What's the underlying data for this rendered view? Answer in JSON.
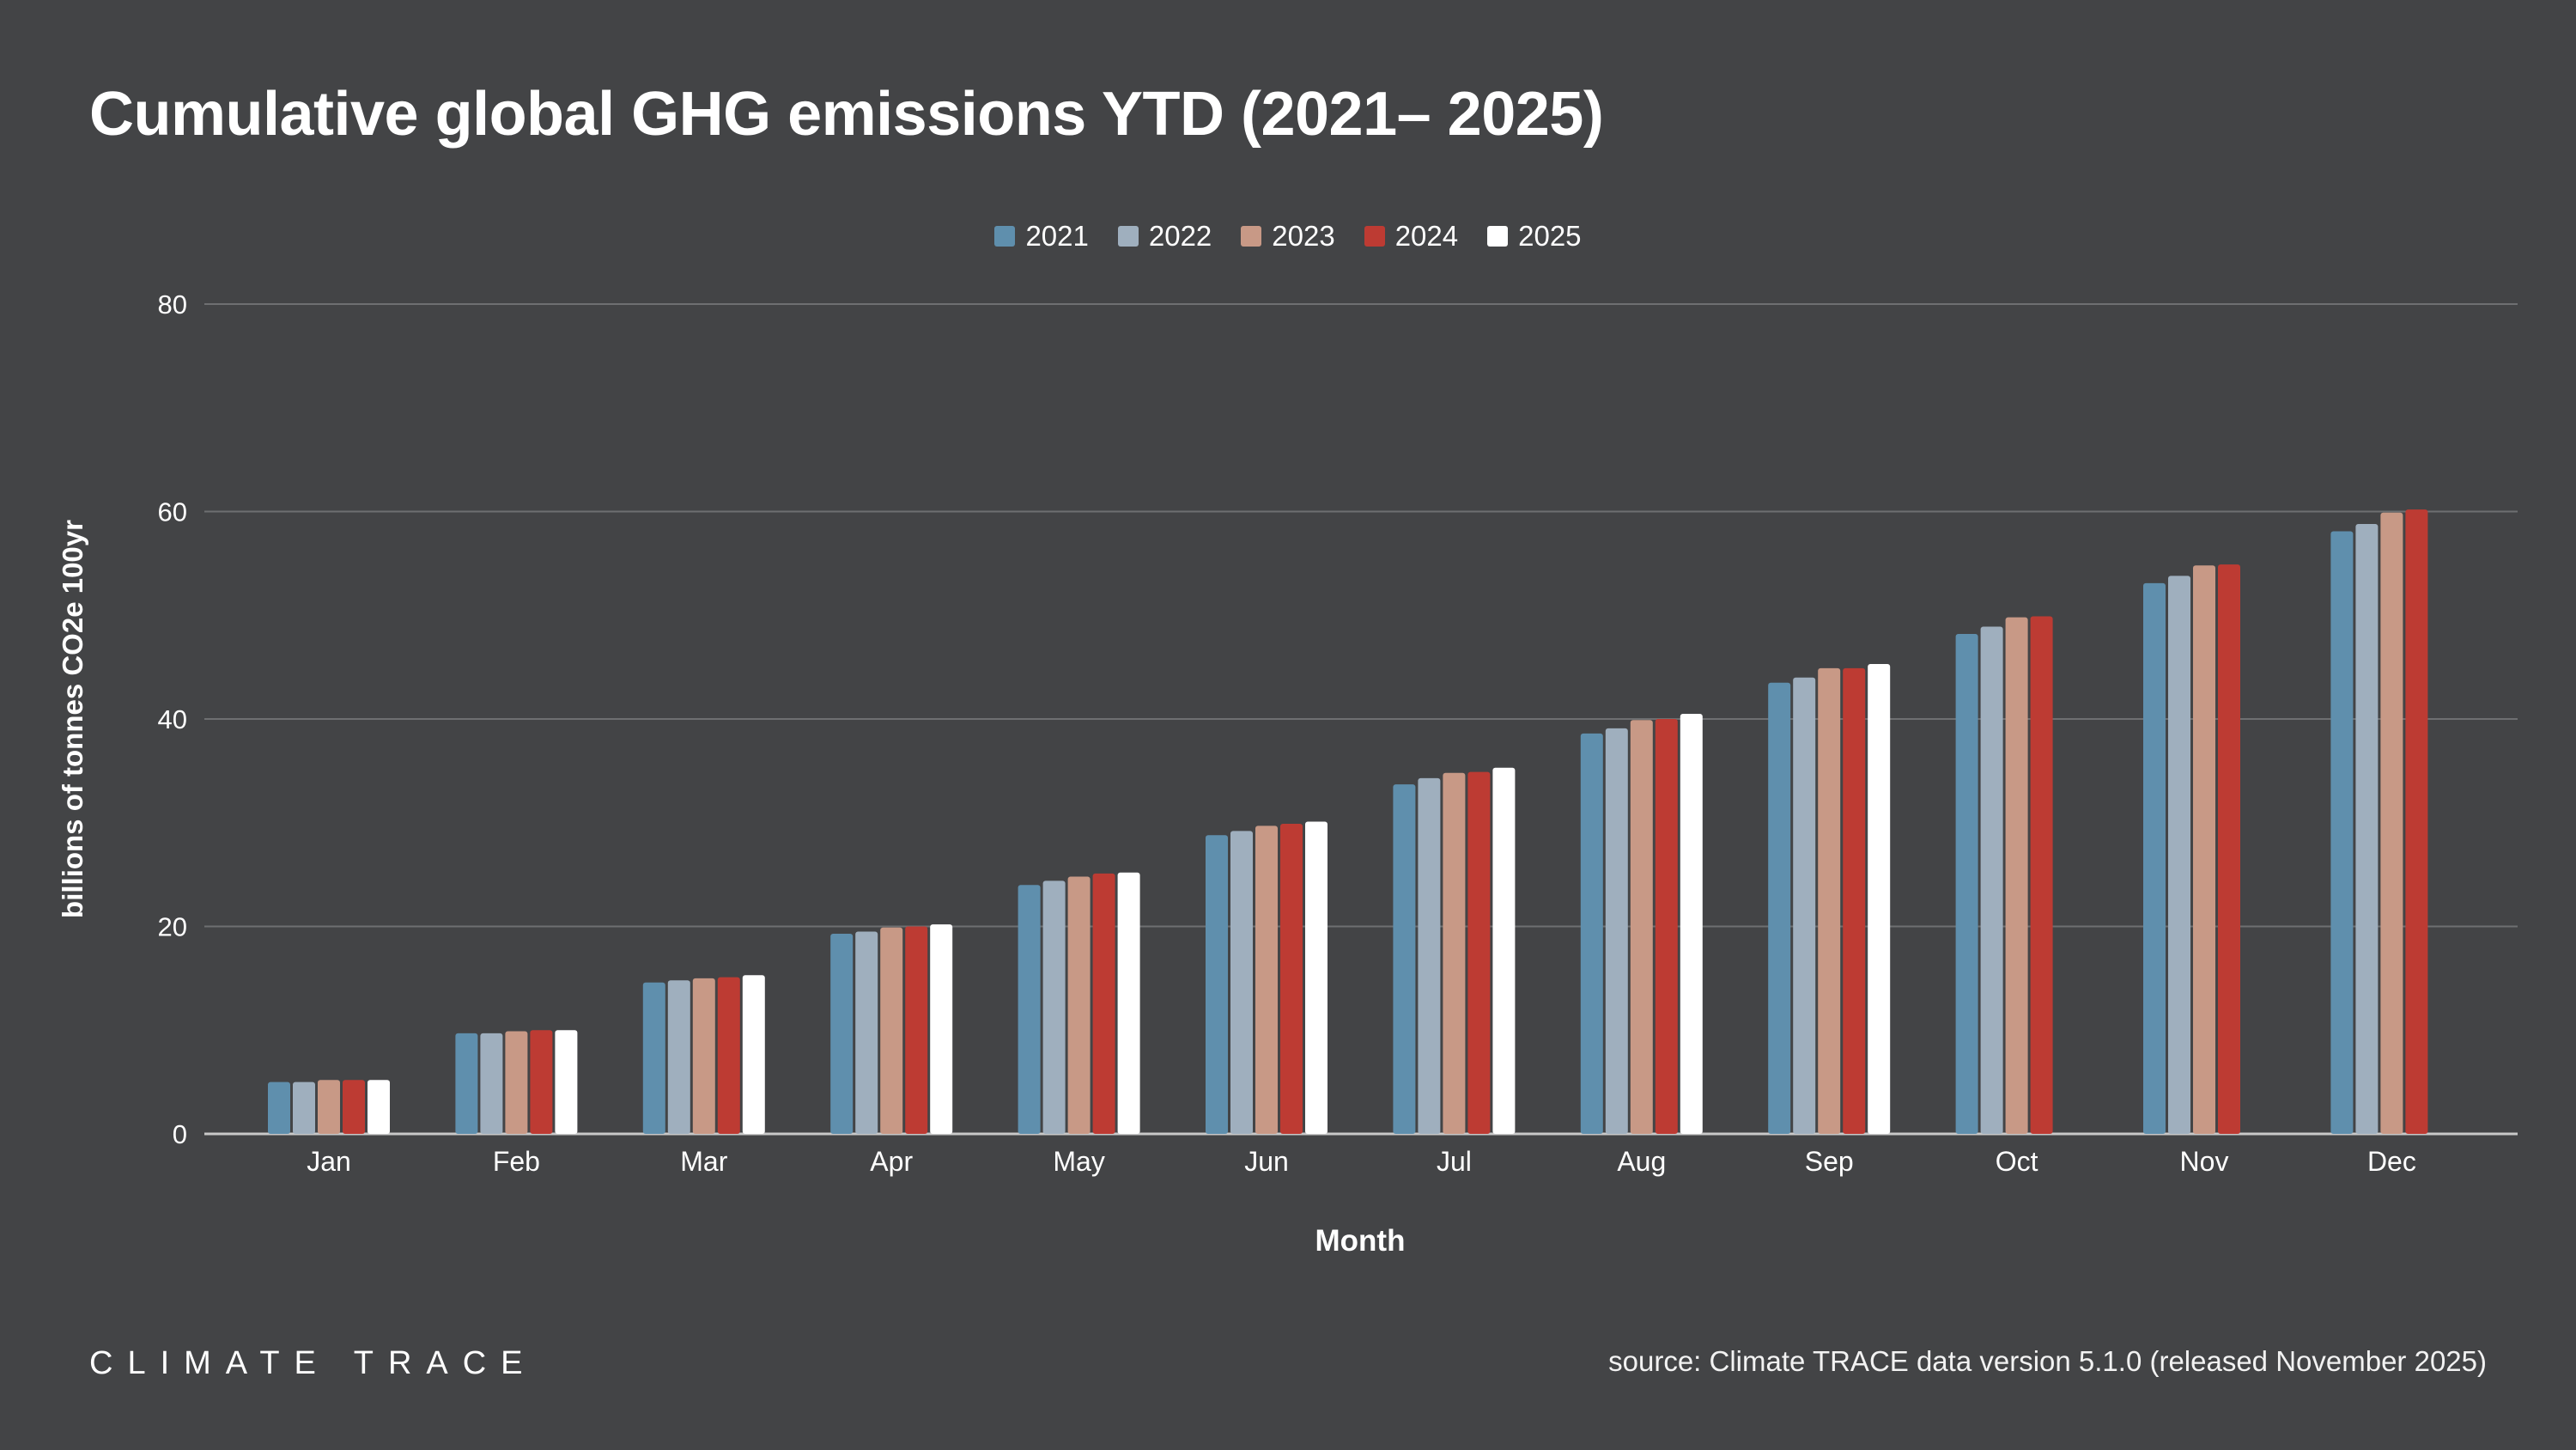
{
  "title": "Cumulative global GHG emissions YTD (2021– 2025)",
  "logo_text": "CLIMATE TRACE",
  "source": "source: Climate TRACE data version 5.1.0 (released November 2025)",
  "chart_data": {
    "type": "bar",
    "title": "Cumulative global GHG emissions YTD (2021– 2025)",
    "xlabel": "Month",
    "ylabel": "billions of tonnes CO2e 100yr",
    "ylim": [
      0,
      80
    ],
    "yticks": [
      0,
      20,
      40,
      60,
      80
    ],
    "grid": true,
    "legend_position": "top",
    "categories": [
      "Jan",
      "Feb",
      "Mar",
      "Apr",
      "May",
      "Jun",
      "Jul",
      "Aug",
      "Sep",
      "Oct",
      "Nov",
      "Dec"
    ],
    "series": [
      {
        "name": "2021",
        "color": "#5f8fad",
        "values": [
          5.0,
          9.7,
          14.6,
          19.3,
          24.0,
          28.8,
          33.7,
          38.6,
          43.5,
          48.2,
          53.1,
          58.1
        ]
      },
      {
        "name": "2022",
        "color": "#9fafbe",
        "values": [
          5.0,
          9.7,
          14.8,
          19.5,
          24.4,
          29.2,
          34.3,
          39.1,
          44.0,
          48.9,
          53.8,
          58.8
        ]
      },
      {
        "name": "2023",
        "color": "#c89986",
        "values": [
          5.2,
          9.9,
          15.0,
          19.9,
          24.8,
          29.7,
          34.8,
          39.9,
          44.9,
          49.8,
          54.8,
          59.9
        ]
      },
      {
        "name": "2024",
        "color": "#bd3b33",
        "values": [
          5.2,
          10.0,
          15.1,
          20.0,
          25.1,
          29.9,
          34.9,
          40.0,
          44.9,
          49.9,
          54.9,
          60.2
        ]
      },
      {
        "name": "2025",
        "color": "#ffffff",
        "values": [
          5.2,
          10.0,
          15.3,
          20.2,
          25.2,
          30.1,
          35.3,
          40.5,
          45.3,
          null,
          null,
          null
        ]
      }
    ]
  }
}
